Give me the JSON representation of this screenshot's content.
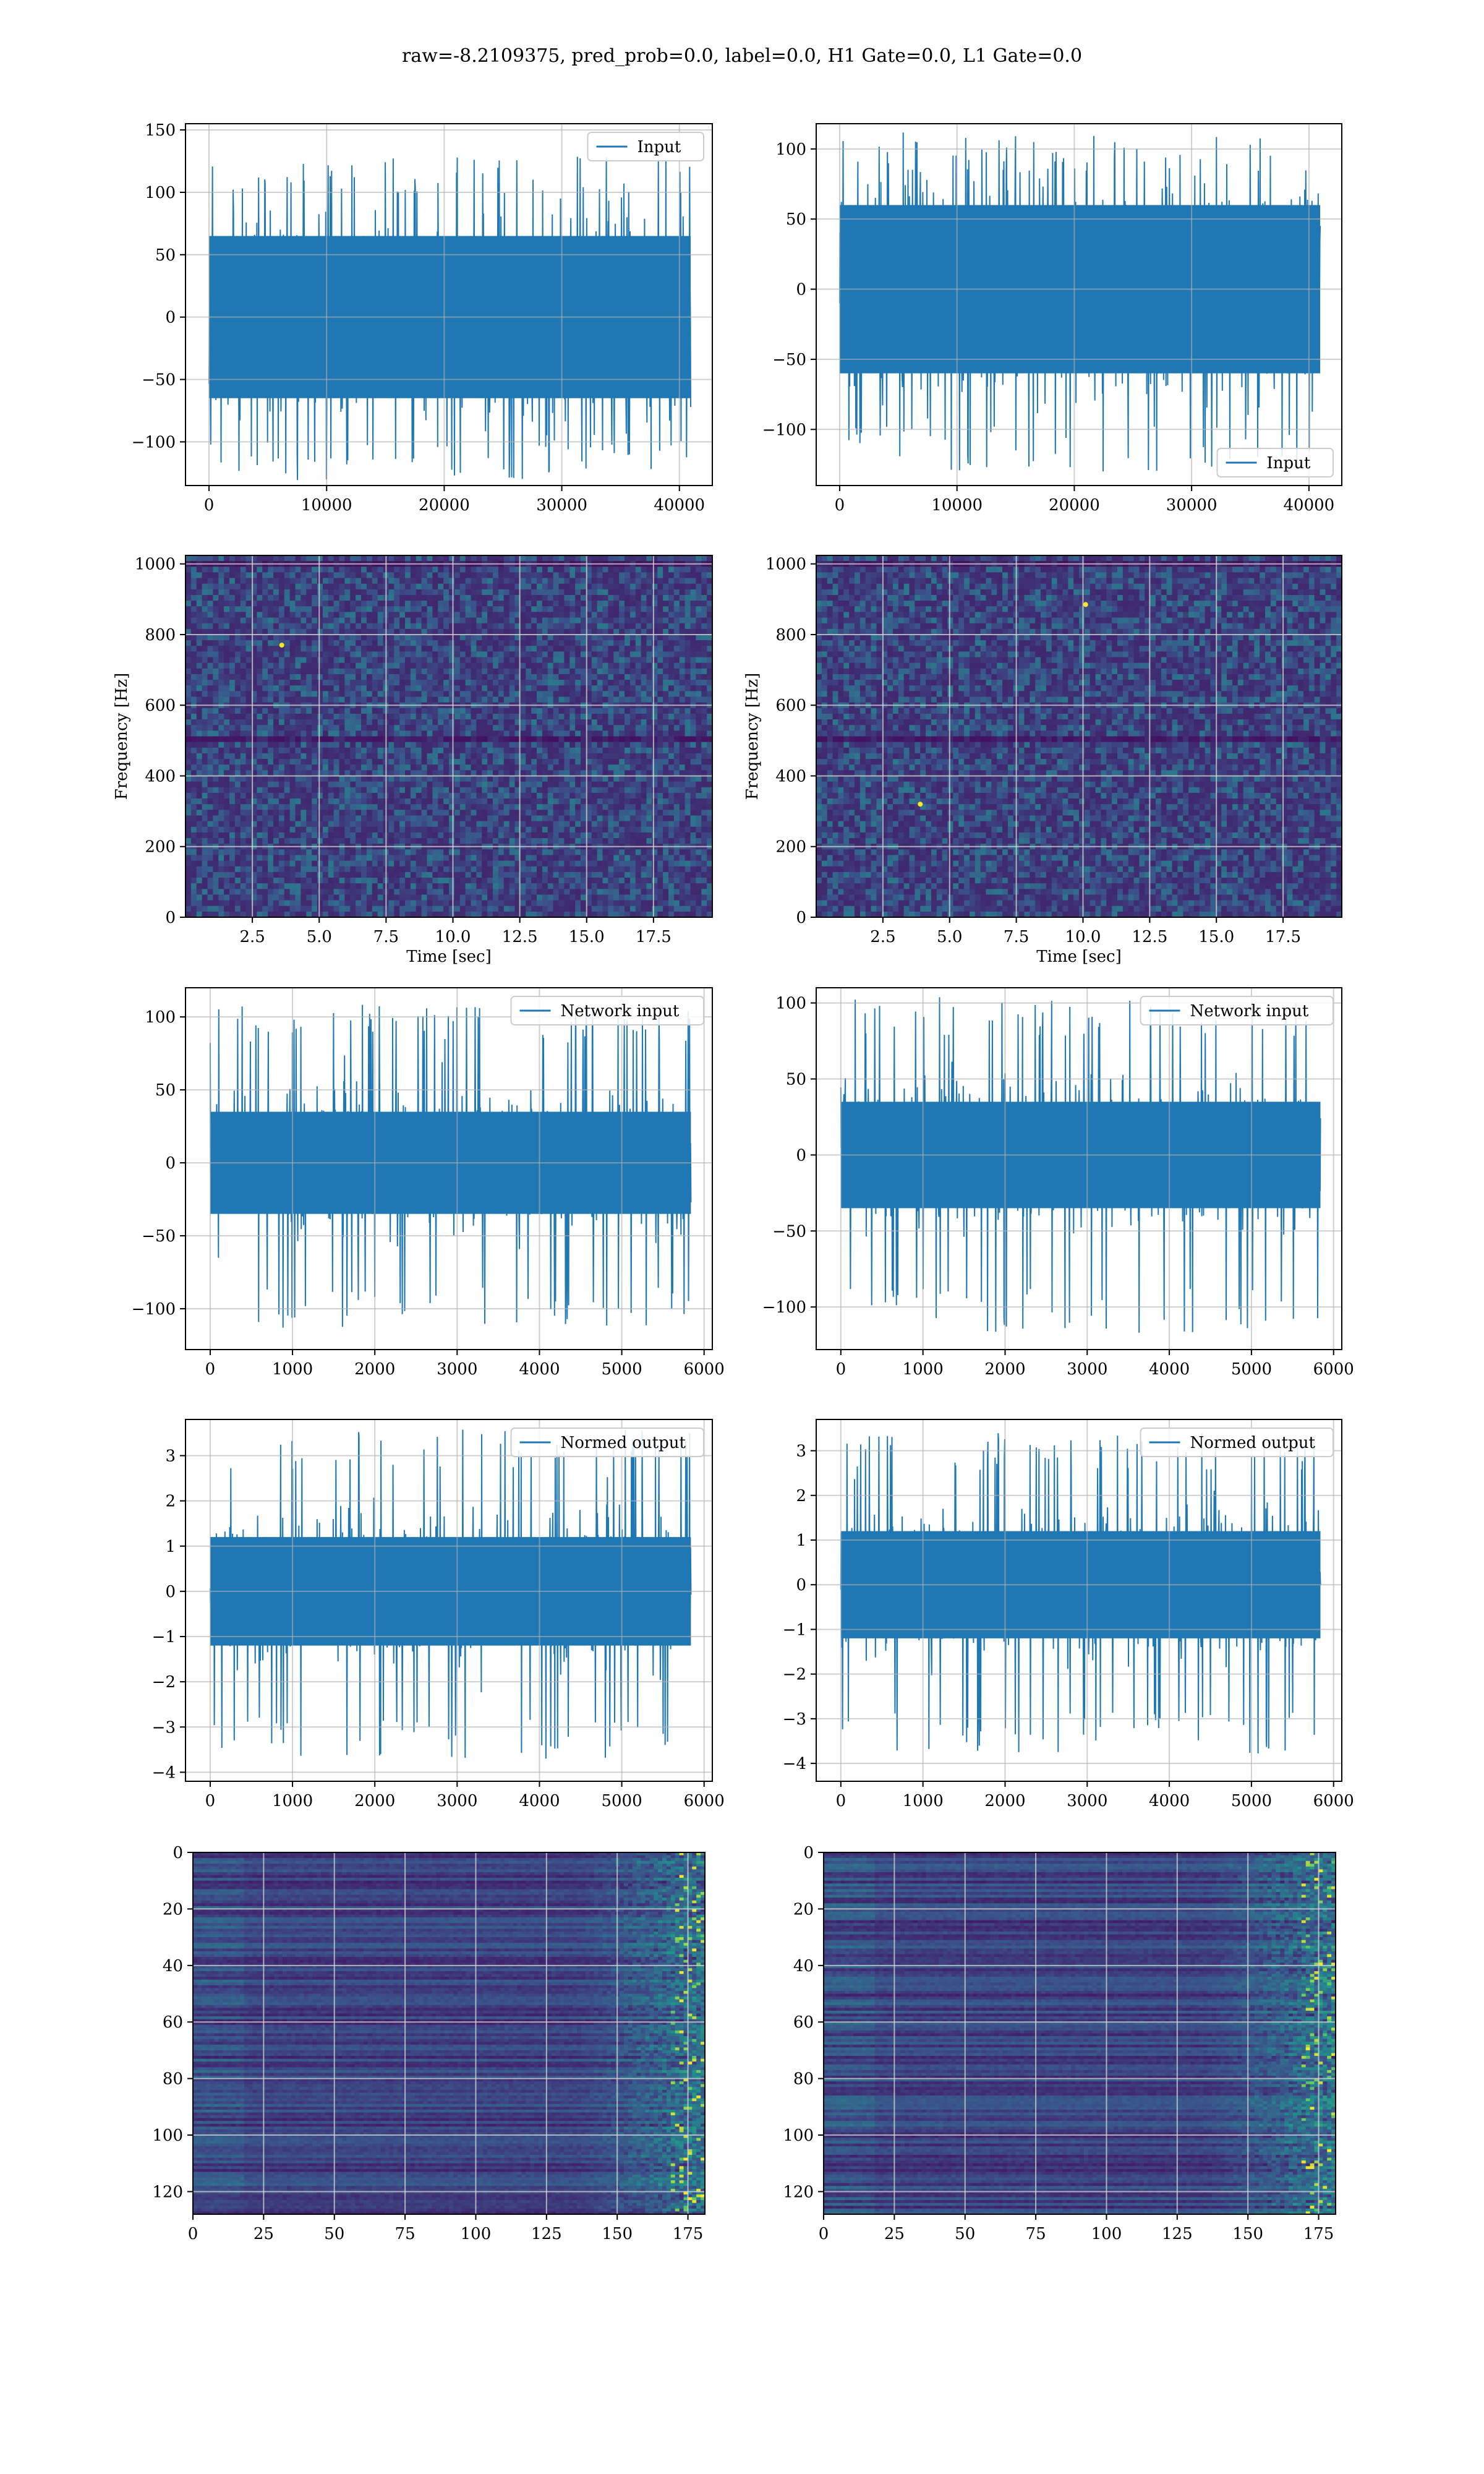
{
  "figure": {
    "title": "raw=-8.2109375, pred_prob=0.0, label=0.0, H1 Gate=0.0, L1 Gate=0.0"
  },
  "colors": {
    "line": "#1f77b4",
    "grid": "#b0b0b0",
    "viridis_low": "#440154",
    "viridis_mid": "#21918c",
    "viridis_high": "#fde725"
  },
  "chart_data": [
    {
      "id": "input-left",
      "type": "line",
      "panel": "row1-left",
      "legend": "Input",
      "legend_loc": "upper right",
      "xlim": [
        -2000,
        42800
      ],
      "ylim": [
        -135,
        155
      ],
      "xticks": [
        0,
        10000,
        20000,
        30000,
        40000
      ],
      "xticklabels": [
        "0",
        "10000",
        "20000",
        "30000",
        "40000"
      ],
      "yticks": [
        -100,
        -50,
        0,
        50,
        100,
        150
      ],
      "yticklabels": [
        "−100",
        "−50",
        "0",
        "50",
        "100",
        "150"
      ],
      "x_range": [
        0,
        40960
      ],
      "envelope": [
        -65,
        65
      ],
      "spike_max": 130,
      "spike_min": -133,
      "grid": true
    },
    {
      "id": "input-right",
      "type": "line",
      "panel": "row1-right",
      "legend": "Input",
      "legend_loc": "lower right",
      "xlim": [
        -2000,
        42800
      ],
      "ylim": [
        -140,
        118
      ],
      "xticks": [
        0,
        10000,
        20000,
        30000,
        40000
      ],
      "xticklabels": [
        "0",
        "10000",
        "20000",
        "30000",
        "40000"
      ],
      "yticks": [
        -100,
        -50,
        0,
        50,
        100
      ],
      "yticklabels": [
        "−100",
        "−50",
        "0",
        "50",
        "100"
      ],
      "x_range": [
        0,
        40960
      ],
      "envelope": [
        -60,
        60
      ],
      "spike_max": 112,
      "spike_min": -130,
      "grid": true
    },
    {
      "id": "spectrogram-left",
      "type": "heatmap",
      "panel": "row2-left",
      "xlabel": "Time [sec]",
      "ylabel": "Frequency [Hz]",
      "xlim": [
        0,
        19.7
      ],
      "ylim": [
        0,
        1024
      ],
      "xticks": [
        2.5,
        5.0,
        7.5,
        10.0,
        12.5,
        15.0,
        17.5
      ],
      "xticklabels": [
        "2.5",
        "5.0",
        "7.5",
        "10.0",
        "12.5",
        "15.0",
        "17.5"
      ],
      "yticks": [
        0,
        200,
        400,
        600,
        800,
        1000
      ],
      "yticklabels": [
        "0",
        "200",
        "400",
        "600",
        "800",
        "1000"
      ],
      "hot_spots": [
        [
          3.6,
          770
        ]
      ],
      "dark_bands_hz": [
        500,
        1000
      ],
      "grid": true
    },
    {
      "id": "spectrogram-right",
      "type": "heatmap",
      "panel": "row2-right",
      "xlabel": "Time [sec]",
      "ylabel": "Frequency [Hz]",
      "xlim": [
        0,
        19.7
      ],
      "ylim": [
        0,
        1024
      ],
      "xticks": [
        2.5,
        5.0,
        7.5,
        10.0,
        12.5,
        15.0,
        17.5
      ],
      "xticklabels": [
        "2.5",
        "5.0",
        "7.5",
        "10.0",
        "12.5",
        "15.0",
        "17.5"
      ],
      "yticks": [
        0,
        200,
        400,
        600,
        800,
        1000
      ],
      "yticklabels": [
        "0",
        "200",
        "400",
        "600",
        "800",
        "1000"
      ],
      "hot_spots": [
        [
          10.1,
          885
        ],
        [
          3.9,
          320
        ]
      ],
      "dark_bands_hz": [
        500,
        1000
      ],
      "grid": true
    },
    {
      "id": "network-input-left",
      "type": "line",
      "panel": "row3-left",
      "legend": "Network input",
      "legend_loc": "upper right",
      "xlim": [
        -300,
        6100
      ],
      "ylim": [
        -128,
        120
      ],
      "xticks": [
        0,
        1000,
        2000,
        3000,
        4000,
        5000,
        6000
      ],
      "xticklabels": [
        "0",
        "1000",
        "2000",
        "3000",
        "4000",
        "5000",
        "6000"
      ],
      "yticks": [
        -100,
        -50,
        0,
        50,
        100
      ],
      "yticklabels": [
        "−100",
        "−50",
        "0",
        "50",
        "100"
      ],
      "x_range": [
        0,
        5840
      ],
      "envelope": [
        -35,
        35
      ],
      "spike_max": 109,
      "spike_min": -113,
      "grid": true
    },
    {
      "id": "network-input-right",
      "type": "line",
      "panel": "row3-right",
      "legend": "Network input",
      "legend_loc": "upper right",
      "xlim": [
        -300,
        6100
      ],
      "ylim": [
        -128,
        110
      ],
      "xticks": [
        0,
        1000,
        2000,
        3000,
        4000,
        5000,
        6000
      ],
      "xticklabels": [
        "0",
        "1000",
        "2000",
        "3000",
        "4000",
        "5000",
        "6000"
      ],
      "yticks": [
        -100,
        -50,
        0,
        50,
        100
      ],
      "yticklabels": [
        "−100",
        "−50",
        "0",
        "50",
        "100"
      ],
      "x_range": [
        0,
        5840
      ],
      "envelope": [
        -35,
        35
      ],
      "spike_max": 104,
      "spike_min": -117,
      "grid": true
    },
    {
      "id": "normed-output-left",
      "type": "line",
      "panel": "row4-left",
      "legend": "Normed output",
      "legend_loc": "upper right",
      "xlim": [
        -300,
        6100
      ],
      "ylim": [
        -4.2,
        3.8
      ],
      "xticks": [
        0,
        1000,
        2000,
        3000,
        4000,
        5000,
        6000
      ],
      "xticklabels": [
        "0",
        "1000",
        "2000",
        "3000",
        "4000",
        "5000",
        "6000"
      ],
      "yticks": [
        -4,
        -3,
        -2,
        -1,
        0,
        1,
        2,
        3
      ],
      "yticklabels": [
        "−4",
        "−3",
        "−2",
        "−1",
        "0",
        "1",
        "2",
        "3"
      ],
      "x_range": [
        0,
        5840
      ],
      "envelope": [
        -1.2,
        1.2
      ],
      "spike_max": 3.6,
      "spike_min": -3.7,
      "grid": true
    },
    {
      "id": "normed-output-right",
      "type": "line",
      "panel": "row4-right",
      "legend": "Normed output",
      "legend_loc": "upper right",
      "xlim": [
        -300,
        6100
      ],
      "ylim": [
        -4.4,
        3.7
      ],
      "xticks": [
        0,
        1000,
        2000,
        3000,
        4000,
        5000,
        6000
      ],
      "xticklabels": [
        "0",
        "1000",
        "2000",
        "3000",
        "4000",
        "5000",
        "6000"
      ],
      "yticks": [
        -4,
        -3,
        -2,
        -1,
        0,
        1,
        2,
        3
      ],
      "yticklabels": [
        "−4",
        "−3",
        "−2",
        "−1",
        "0",
        "1",
        "2",
        "3"
      ],
      "x_range": [
        0,
        5840
      ],
      "envelope": [
        -1.2,
        1.2
      ],
      "spike_max": 3.4,
      "spike_min": -3.8,
      "grid": true
    },
    {
      "id": "feature-map-left",
      "type": "heatmap",
      "panel": "row5-left",
      "xlim": [
        0,
        181
      ],
      "ylim": [
        128,
        0
      ],
      "xticks": [
        0,
        25,
        50,
        75,
        100,
        125,
        150,
        175
      ],
      "xticklabels": [
        "0",
        "25",
        "50",
        "75",
        "100",
        "125",
        "150",
        "175"
      ],
      "yticks": [
        0,
        20,
        40,
        60,
        80,
        100,
        120
      ],
      "yticklabels": [
        "0",
        "20",
        "40",
        "60",
        "80",
        "100",
        "120"
      ],
      "rows": 128,
      "cols": 181,
      "grid": true
    },
    {
      "id": "feature-map-right",
      "type": "heatmap",
      "panel": "row5-right",
      "xlim": [
        0,
        181
      ],
      "ylim": [
        128,
        0
      ],
      "xticks": [
        0,
        25,
        50,
        75,
        100,
        125,
        150,
        175
      ],
      "xticklabels": [
        "0",
        "25",
        "50",
        "75",
        "100",
        "125",
        "150",
        "175"
      ],
      "yticks": [
        0,
        20,
        40,
        60,
        80,
        100,
        120
      ],
      "yticklabels": [
        "0",
        "20",
        "40",
        "60",
        "80",
        "100",
        "120"
      ],
      "rows": 128,
      "cols": 181,
      "grid": true
    }
  ]
}
